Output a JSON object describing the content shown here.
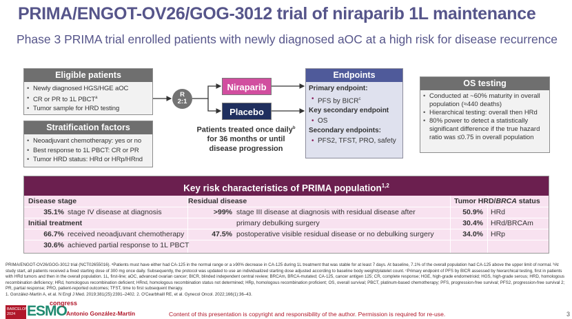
{
  "header": {
    "title": "PRIMA/ENGOT-OV26/GOG-3012 trial of niraparib 1L maintenance",
    "subtitle": "Phase 3 PRIMA trial enrolled patients with newly diagnosed aOC at a high risk for disease recurrence"
  },
  "eligible": {
    "title": "Eligible patients",
    "items": [
      "Newly diagnosed HGS/HGE aOC",
      "CR or PR to 1L PBCT",
      "Tumor sample for HRD testing"
    ],
    "sup": "a"
  },
  "stratification": {
    "title": "Stratification factors",
    "items": [
      "Neoadjuvant chemotherapy: yes or no",
      "Best response to 1L PBCT: CR or PR",
      "Tumor HRD status: HRd or HRp/HRnd"
    ]
  },
  "randomization": {
    "label": "R",
    "ratio": "2:1"
  },
  "arms": {
    "niraparib": "Niraparib",
    "placebo": "Placebo",
    "treatment_line1": "Patients treated once daily",
    "treatment_sup": "b",
    "treatment_line2": "for 36 months or until disease progression"
  },
  "endpoints": {
    "title": "Endpoints",
    "primary_label": "Primary endpoint:",
    "primary": "PFS by BICR",
    "primary_sup": "c",
    "key_secondary_label": "Key secondary endpoint",
    "key_secondary": "OS",
    "secondary_label": "Secondary endpoints:",
    "secondary": "PFS2, TFST, PRO, safety"
  },
  "os_testing": {
    "title": "OS testing",
    "items": [
      "Conducted at ~60% maturity in overall population (≈440 deaths)",
      "Hierarchical testing: overall then HRd",
      "80% power to detect a statistically significant difference if the true hazard ratio was ≤0.75 in overall population"
    ]
  },
  "risk": {
    "title": "Key risk characteristics of PRIMA population",
    "title_sup": "1,2",
    "disease_stage": {
      "header": "Disease stage",
      "pct": "35.1%",
      "text": "stage IV disease at diagnosis"
    },
    "initial_treatment": {
      "header": "Initial treatment",
      "rows": [
        {
          "pct": "66.7%",
          "text": "received neoadjuvant chemotherapy"
        },
        {
          "pct": "30.6%",
          "text": "achieved partial response to 1L PBCT"
        }
      ]
    },
    "residual": {
      "header": "Residual disease",
      "rows": [
        {
          "pct": ">99%",
          "text": "stage III disease at diagnosis with residual disease after",
          "text2": "primary debulking surgery"
        },
        {
          "pct": "47.5%",
          "text": "postoperative visible residual disease or no debulking surgery"
        }
      ]
    },
    "hrd": {
      "header_a": "Tumor HRD/",
      "header_b": "BRCA",
      "header_c": " status",
      "rows": [
        {
          "pct": "50.9%",
          "text": "HRd"
        },
        {
          "pct": "30.4%",
          "text": "HRd/BRCAm"
        },
        {
          "pct": "34.0%",
          "text": "HRp"
        }
      ]
    }
  },
  "footnotes": {
    "text": "PRIMA/ENGOT-OV26/GOG-3012 trial (NCT02655016). ᵃPatients must have either had CA-125 in the normal range or a ≥90% decrease in CA-125 during 1L treatment that was stable for at least 7 days. At baseline, 7.1% of the overall population had CA-125 above the upper limit of normal. ᵇAt study start, all patients received a fixed starting dose of 300 mg once daily. Subsequently, the protocol was updated to use an individualized starting dose adjusted according to baseline body weight/platelet count. ᶜPrimary endpoint of PFS by BICR assessed by hierarchical testing, first in patients with HRd tumors and then in the overall population. 1L, first-line; aOC, advanced ovarian cancer; BICR, blinded independent central review; BRCAm, BRCA-mutated; CA-125, cancer antigen 125; CR, complete response; HGE, high-grade endometrioid; HGS, high-grade serous; HRD, homologous recombination deficiency; HRd, homologous recombination deficient; HRnd, homologous recombination status not determined; HRp, homologous recombination proficient; OS, overall survival; PBCT, platinum-based chemotherapy; PFS, progression-free survival; PFS2, progression-free survival 2; PR, partial response; PRO, patient-reported outcomes; TFST, time to first subsequent therapy.",
    "references": "1. González-Martín A, et al. N Engl J Med. 2019;381(25):2391–2402. 2. O'Cearbhaill RE, et al. Gynecol Oncol. 2022;166(1):36–43."
  },
  "footer": {
    "logo_city": "BARCELONA",
    "logo_year": "2024",
    "logo_brand": "ESMO",
    "logo_word": "congress",
    "author": "Antonio González-Martín",
    "copyright": "Content of this presentation is copyright and responsibility of the author. Permission is required for re-use.",
    "page": "3"
  },
  "colors": {
    "title": "#56558a",
    "niraparib": "#d14e9f",
    "placebo": "#1f2f5e",
    "endpoints_header": "#4f5a9a",
    "risk_header": "#6b1f4f",
    "footer_red": "#b0172a"
  }
}
